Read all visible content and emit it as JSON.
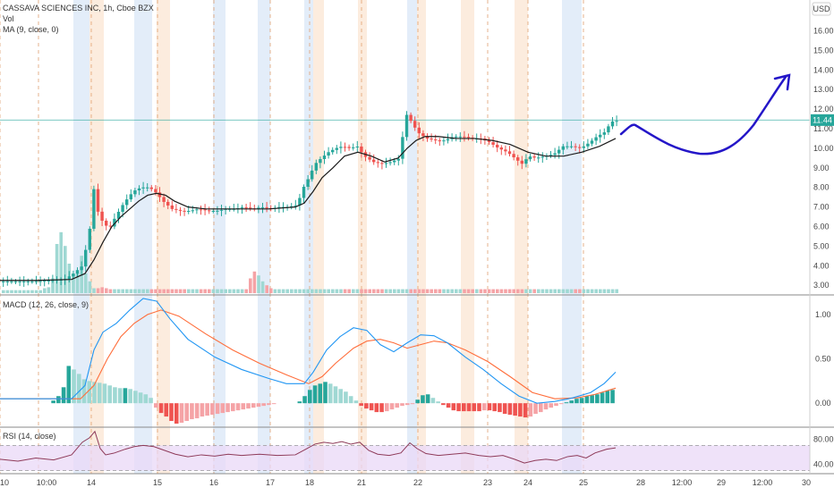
{
  "chart_data": [
    {
      "type": "candlestick",
      "panel": "price",
      "legend": [
        "CASSAVA SCIENCES INC, 1h, Cboe BZX",
        "Vol",
        "MA (9, close, 0)"
      ],
      "currency": "USD",
      "last_price_label": "11.44",
      "last_price": 11.44,
      "y_tick_labels": [
        "16.00",
        "15.00",
        "14.00",
        "13.00",
        "12.00",
        "11.00",
        "10.00",
        "9.00",
        "8.00",
        "7.00",
        "6.00",
        "5.00",
        "4.00",
        "3.00"
      ],
      "ylim": [
        2.6,
        17.3
      ],
      "price_path": [
        [
          0,
          3.2
        ],
        [
          20,
          3.2
        ],
        [
          40,
          3.2
        ],
        [
          60,
          3.25
        ],
        [
          75,
          3.3
        ],
        [
          85,
          3.6
        ],
        [
          95,
          4.0
        ],
        [
          103,
          5.8
        ],
        [
          108,
          8.0
        ],
        [
          112,
          6.8
        ],
        [
          118,
          6.2
        ],
        [
          125,
          5.9
        ],
        [
          132,
          6.5
        ],
        [
          140,
          7.1
        ],
        [
          148,
          7.6
        ],
        [
          155,
          7.9
        ],
        [
          162,
          8.0
        ],
        [
          170,
          8.0
        ],
        [
          178,
          7.7
        ],
        [
          185,
          7.3
        ],
        [
          195,
          6.9
        ],
        [
          205,
          6.8
        ],
        [
          215,
          6.8
        ],
        [
          225,
          6.9
        ],
        [
          235,
          6.8
        ],
        [
          245,
          6.8
        ],
        [
          255,
          6.9
        ],
        [
          265,
          6.9
        ],
        [
          275,
          7.0
        ],
        [
          285,
          6.9
        ],
        [
          295,
          7.0
        ],
        [
          305,
          6.9
        ],
        [
          315,
          7.0
        ],
        [
          325,
          7.0
        ],
        [
          335,
          7.1
        ],
        [
          342,
          8.0
        ],
        [
          348,
          8.5
        ],
        [
          355,
          9.2
        ],
        [
          362,
          9.5
        ],
        [
          370,
          9.8
        ],
        [
          378,
          10.0
        ],
        [
          386,
          10.1
        ],
        [
          394,
          10.0
        ],
        [
          402,
          10.1
        ],
        [
          410,
          9.6
        ],
        [
          420,
          9.3
        ],
        [
          430,
          9.2
        ],
        [
          440,
          9.3
        ],
        [
          450,
          9.5
        ],
        [
          456,
          11.8
        ],
        [
          462,
          11.4
        ],
        [
          470,
          10.8
        ],
        [
          480,
          10.5
        ],
        [
          490,
          10.4
        ],
        [
          500,
          10.4
        ],
        [
          510,
          10.6
        ],
        [
          520,
          10.6
        ],
        [
          530,
          10.5
        ],
        [
          540,
          10.5
        ],
        [
          550,
          10.3
        ],
        [
          560,
          10.0
        ],
        [
          570,
          9.8
        ],
        [
          578,
          9.5
        ],
        [
          586,
          9.2
        ],
        [
          594,
          9.6
        ],
        [
          602,
          9.5
        ],
        [
          612,
          9.6
        ],
        [
          622,
          9.7
        ],
        [
          632,
          10.1
        ],
        [
          642,
          10.1
        ],
        [
          652,
          10.0
        ],
        [
          662,
          10.3
        ],
        [
          670,
          10.6
        ],
        [
          678,
          10.8
        ],
        [
          684,
          11.2
        ],
        [
          688,
          11.4
        ]
      ],
      "ma_path": [
        [
          0,
          3.25
        ],
        [
          40,
          3.25
        ],
        [
          80,
          3.3
        ],
        [
          95,
          3.6
        ],
        [
          105,
          4.3
        ],
        [
          115,
          5.2
        ],
        [
          125,
          6.0
        ],
        [
          135,
          6.5
        ],
        [
          145,
          6.9
        ],
        [
          155,
          7.3
        ],
        [
          165,
          7.6
        ],
        [
          175,
          7.7
        ],
        [
          185,
          7.6
        ],
        [
          195,
          7.3
        ],
        [
          210,
          7.0
        ],
        [
          230,
          6.9
        ],
        [
          260,
          6.9
        ],
        [
          300,
          6.9
        ],
        [
          330,
          7.0
        ],
        [
          340,
          7.2
        ],
        [
          350,
          7.8
        ],
        [
          360,
          8.5
        ],
        [
          372,
          9.0
        ],
        [
          385,
          9.6
        ],
        [
          400,
          9.8
        ],
        [
          415,
          9.6
        ],
        [
          430,
          9.3
        ],
        [
          445,
          9.5
        ],
        [
          455,
          10.0
        ],
        [
          465,
          10.4
        ],
        [
          475,
          10.6
        ],
        [
          490,
          10.6
        ],
        [
          510,
          10.5
        ],
        [
          530,
          10.5
        ],
        [
          550,
          10.4
        ],
        [
          570,
          10.2
        ],
        [
          590,
          9.8
        ],
        [
          610,
          9.6
        ],
        [
          630,
          9.6
        ],
        [
          650,
          9.8
        ],
        [
          670,
          10.1
        ],
        [
          688,
          10.5
        ]
      ],
      "volume": [
        0.03,
        0.03,
        0.03,
        0.03,
        0.03,
        0.03,
        0.03,
        0.03,
        0.03,
        0.03,
        0.05,
        0.06,
        0.15,
        0.5,
        0.62,
        0.48,
        0.3,
        0.2,
        0.2,
        0.38,
        0.2,
        0.12,
        0.05,
        0.05,
        0.06,
        0.05,
        0.04,
        0.04,
        0.04,
        0.04,
        0.04,
        0.04,
        0.04,
        0.04,
        0.04,
        0.04,
        0.04,
        0.04,
        0.04,
        0.04,
        0.04,
        0.04,
        0.04,
        0.04,
        0.04,
        0.04,
        0.04,
        0.04,
        0.04,
        0.04,
        0.04,
        0.04,
        0.04,
        0.04,
        0.04,
        0.04,
        0.04,
        0.04,
        0.04,
        0.04,
        0.15,
        0.22,
        0.18,
        0.12,
        0.08,
        0.05,
        0.04,
        0.04,
        0.04,
        0.04,
        0.04,
        0.04,
        0.04,
        0.04,
        0.04,
        0.04,
        0.04,
        0.04,
        0.04,
        0.04,
        0.04,
        0.04,
        0.04,
        0.04,
        0.04,
        0.04,
        0.04,
        0.04,
        0.04,
        0.04,
        0.04,
        0.04,
        0.04,
        0.04,
        0.04,
        0.04,
        0.04,
        0.04,
        0.04,
        0.04,
        0.04,
        0.04,
        0.04,
        0.04,
        0.04,
        0.04,
        0.04,
        0.04,
        0.04,
        0.04,
        0.04,
        0.04,
        0.04,
        0.04,
        0.04,
        0.04,
        0.04,
        0.04,
        0.04,
        0.04,
        0.04,
        0.04,
        0.04,
        0.04,
        0.04,
        0.04,
        0.04,
        0.04,
        0.04,
        0.04,
        0.04,
        0.04,
        0.04,
        0.04,
        0.04,
        0.04,
        0.04,
        0.04,
        0.04,
        0.04,
        0.04,
        0.04,
        0.04,
        0.04,
        0.04,
        0.04,
        0.04,
        0.04,
        0.04,
        0.04,
        0.04,
        0.04,
        0.04,
        0.04,
        0.04,
        0.06,
        0.08
      ]
    },
    {
      "type": "line",
      "panel": "macd",
      "legend": "MACD (12, 26, close, 9)",
      "y_tick_labels": [
        "1.00",
        "0.50",
        "0.00"
      ],
      "ylim": [
        -0.25,
        1.2
      ],
      "macd_path": [
        [
          0,
          0.05
        ],
        [
          80,
          0.05
        ],
        [
          95,
          0.2
        ],
        [
          105,
          0.6
        ],
        [
          115,
          0.8
        ],
        [
          130,
          0.9
        ],
        [
          145,
          1.05
        ],
        [
          160,
          1.18
        ],
        [
          175,
          1.15
        ],
        [
          190,
          0.95
        ],
        [
          210,
          0.72
        ],
        [
          240,
          0.52
        ],
        [
          270,
          0.38
        ],
        [
          300,
          0.28
        ],
        [
          320,
          0.22
        ],
        [
          340,
          0.22
        ],
        [
          350,
          0.35
        ],
        [
          365,
          0.6
        ],
        [
          380,
          0.75
        ],
        [
          395,
          0.85
        ],
        [
          410,
          0.82
        ],
        [
          425,
          0.66
        ],
        [
          440,
          0.58
        ],
        [
          455,
          0.68
        ],
        [
          470,
          0.77
        ],
        [
          485,
          0.76
        ],
        [
          500,
          0.68
        ],
        [
          520,
          0.52
        ],
        [
          540,
          0.38
        ],
        [
          560,
          0.22
        ],
        [
          580,
          0.08
        ],
        [
          600,
          0.0
        ],
        [
          620,
          0.02
        ],
        [
          640,
          0.06
        ],
        [
          660,
          0.12
        ],
        [
          675,
          0.22
        ],
        [
          688,
          0.35
        ]
      ],
      "signal_path": [
        [
          0,
          0.05
        ],
        [
          90,
          0.05
        ],
        [
          105,
          0.2
        ],
        [
          120,
          0.5
        ],
        [
          135,
          0.75
        ],
        [
          150,
          0.9
        ],
        [
          165,
          1.0
        ],
        [
          180,
          1.05
        ],
        [
          200,
          0.98
        ],
        [
          230,
          0.78
        ],
        [
          260,
          0.6
        ],
        [
          290,
          0.45
        ],
        [
          320,
          0.32
        ],
        [
          345,
          0.22
        ],
        [
          360,
          0.3
        ],
        [
          375,
          0.45
        ],
        [
          395,
          0.62
        ],
        [
          410,
          0.7
        ],
        [
          425,
          0.72
        ],
        [
          440,
          0.68
        ],
        [
          455,
          0.62
        ],
        [
          470,
          0.66
        ],
        [
          485,
          0.7
        ],
        [
          500,
          0.68
        ],
        [
          520,
          0.6
        ],
        [
          545,
          0.47
        ],
        [
          570,
          0.3
        ],
        [
          595,
          0.12
        ],
        [
          620,
          0.05
        ],
        [
          645,
          0.06
        ],
        [
          665,
          0.1
        ],
        [
          688,
          0.17
        ]
      ],
      "histogram": [
        0.0,
        0.0,
        0.0,
        0.0,
        0.0,
        0.0,
        0.0,
        0.0,
        0.0,
        0.0,
        0.03,
        0.08,
        0.18,
        0.42,
        0.38,
        0.33,
        0.27,
        0.25,
        0.24,
        0.23,
        0.22,
        0.2,
        0.18,
        0.17,
        0.17,
        0.16,
        0.14,
        0.12,
        0.1,
        0.06,
        -0.05,
        -0.11,
        -0.15,
        -0.2,
        -0.23,
        -0.22,
        -0.2,
        -0.18,
        -0.17,
        -0.15,
        -0.14,
        -0.13,
        -0.12,
        -0.11,
        -0.1,
        -0.09,
        -0.08,
        -0.07,
        -0.06,
        -0.05,
        -0.04,
        -0.03,
        -0.02,
        -0.01,
        0.0,
        0.0,
        0.0,
        0.0,
        0.02,
        0.08,
        0.15,
        0.2,
        0.22,
        0.24,
        0.22,
        0.19,
        0.16,
        0.13,
        0.08,
        0.03,
        -0.03,
        -0.06,
        -0.08,
        -0.1,
        -0.1,
        -0.09,
        -0.07,
        -0.05,
        -0.03,
        -0.02,
        -0.01,
        0.04,
        0.09,
        0.1,
        0.06,
        0.02,
        -0.02,
        -0.05,
        -0.08,
        -0.09,
        -0.09,
        -0.09,
        -0.09,
        -0.09,
        -0.08,
        -0.08,
        -0.09,
        -0.1,
        -0.12,
        -0.13,
        -0.14,
        -0.15,
        -0.16,
        -0.15,
        -0.12,
        -0.1,
        -0.07,
        -0.05,
        -0.03,
        -0.01,
        0.01,
        0.03,
        0.05,
        0.06,
        0.08,
        0.09,
        0.1,
        0.12,
        0.14,
        0.15
      ]
    },
    {
      "type": "line",
      "panel": "rsi",
      "legend": "RSI (14, close)",
      "y_tick_labels": [
        "80.00",
        "40.00"
      ],
      "ylim": [
        28,
        96
      ],
      "band": [
        30,
        70
      ],
      "rsi_path": [
        [
          0,
          48
        ],
        [
          20,
          45
        ],
        [
          40,
          50
        ],
        [
          60,
          47
        ],
        [
          80,
          55
        ],
        [
          92,
          75
        ],
        [
          100,
          82
        ],
        [
          106,
          92
        ],
        [
          112,
          65
        ],
        [
          118,
          55
        ],
        [
          128,
          58
        ],
        [
          140,
          64
        ],
        [
          150,
          68
        ],
        [
          160,
          70
        ],
        [
          172,
          68
        ],
        [
          184,
          62
        ],
        [
          196,
          56
        ],
        [
          210,
          52
        ],
        [
          225,
          55
        ],
        [
          240,
          53
        ],
        [
          255,
          56
        ],
        [
          270,
          54
        ],
        [
          290,
          56
        ],
        [
          310,
          54
        ],
        [
          330,
          55
        ],
        [
          343,
          65
        ],
        [
          352,
          72
        ],
        [
          362,
          75
        ],
        [
          372,
          73
        ],
        [
          382,
          76
        ],
        [
          392,
          72
        ],
        [
          402,
          75
        ],
        [
          412,
          62
        ],
        [
          422,
          56
        ],
        [
          435,
          54
        ],
        [
          448,
          58
        ],
        [
          458,
          74
        ],
        [
          466,
          65
        ],
        [
          476,
          57
        ],
        [
          490,
          54
        ],
        [
          505,
          56
        ],
        [
          520,
          58
        ],
        [
          535,
          54
        ],
        [
          548,
          52
        ],
        [
          562,
          54
        ],
        [
          575,
          48
        ],
        [
          586,
          42
        ],
        [
          598,
          46
        ],
        [
          610,
          48
        ],
        [
          622,
          46
        ],
        [
          634,
          52
        ],
        [
          645,
          54
        ],
        [
          655,
          50
        ],
        [
          665,
          58
        ],
        [
          678,
          64
        ],
        [
          688,
          66
        ]
      ]
    }
  ],
  "x_tick_labels": [
    "10",
    "10:00",
    "14",
    "15",
    "16",
    "17",
    "18",
    "21",
    "22",
    "23",
    "24",
    "25",
    "28",
    "12:00",
    "29",
    "12:00",
    "30"
  ],
  "colors": {
    "up": "#26a69a",
    "down": "#ef5350",
    "up_vol": "#9fd8d3",
    "down_vol": "#f5a3a6",
    "ma": "#1a1a1a",
    "macd": "#2196f3",
    "signal": "#ff6d3a",
    "rsi": "#8e3a59",
    "rsi_band": "#ead8f7",
    "shade_blue": "#dce9f7",
    "shade_orange": "#fbe7d6",
    "drawing": "#2416c8",
    "last_price_badge": "#26a69a"
  }
}
